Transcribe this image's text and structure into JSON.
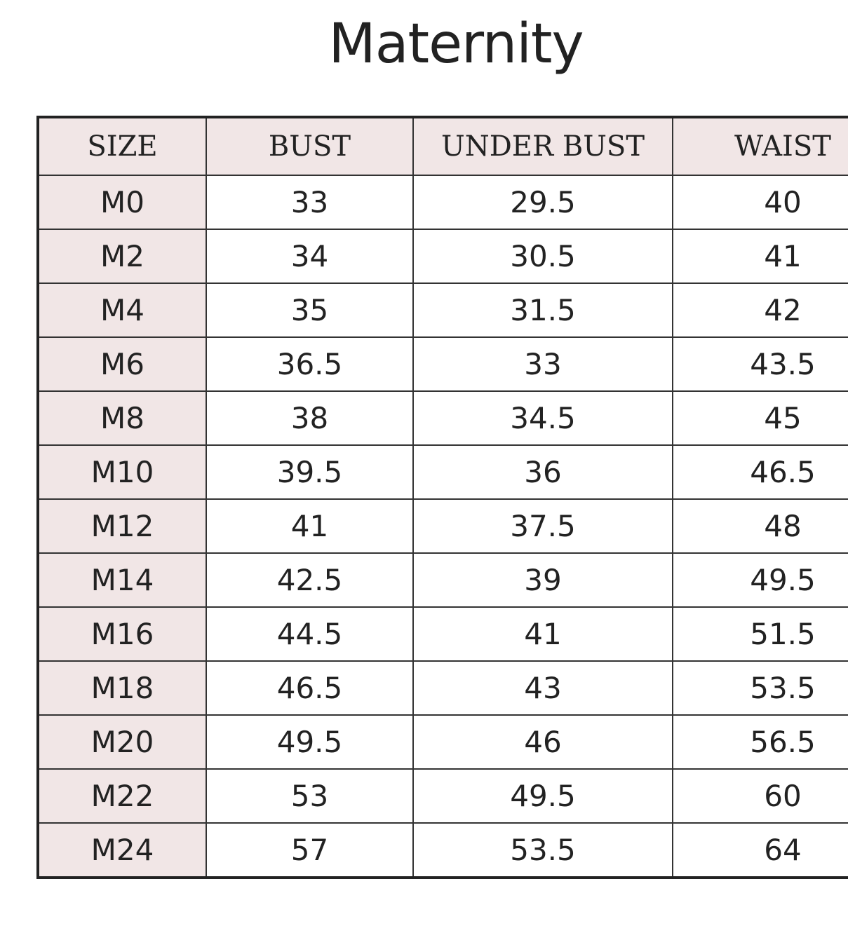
{
  "title": "Maternity",
  "table": {
    "header": [
      "SIZE",
      "BUST",
      "UNDER BUST",
      "WAIST"
    ],
    "rows": [
      [
        "M0",
        "33",
        "29.5",
        "40"
      ],
      [
        "M2",
        "34",
        "30.5",
        "41"
      ],
      [
        "M4",
        "35",
        "31.5",
        "42"
      ],
      [
        "M6",
        "36.5",
        "33",
        "43.5"
      ],
      [
        "M8",
        "38",
        "34.5",
        "45"
      ],
      [
        "M10",
        "39.5",
        "36",
        "46.5"
      ],
      [
        "M12",
        "41",
        "37.5",
        "48"
      ],
      [
        "M14",
        "42.5",
        "39",
        "49.5"
      ],
      [
        "M16",
        "44.5",
        "41",
        "51.5"
      ],
      [
        "M18",
        "46.5",
        "43",
        "53.5"
      ],
      [
        "M20",
        "49.5",
        "46",
        "56.5"
      ],
      [
        "M22",
        "53",
        "49.5",
        "60"
      ],
      [
        "M24",
        "57",
        "53.5",
        "64"
      ]
    ]
  }
}
